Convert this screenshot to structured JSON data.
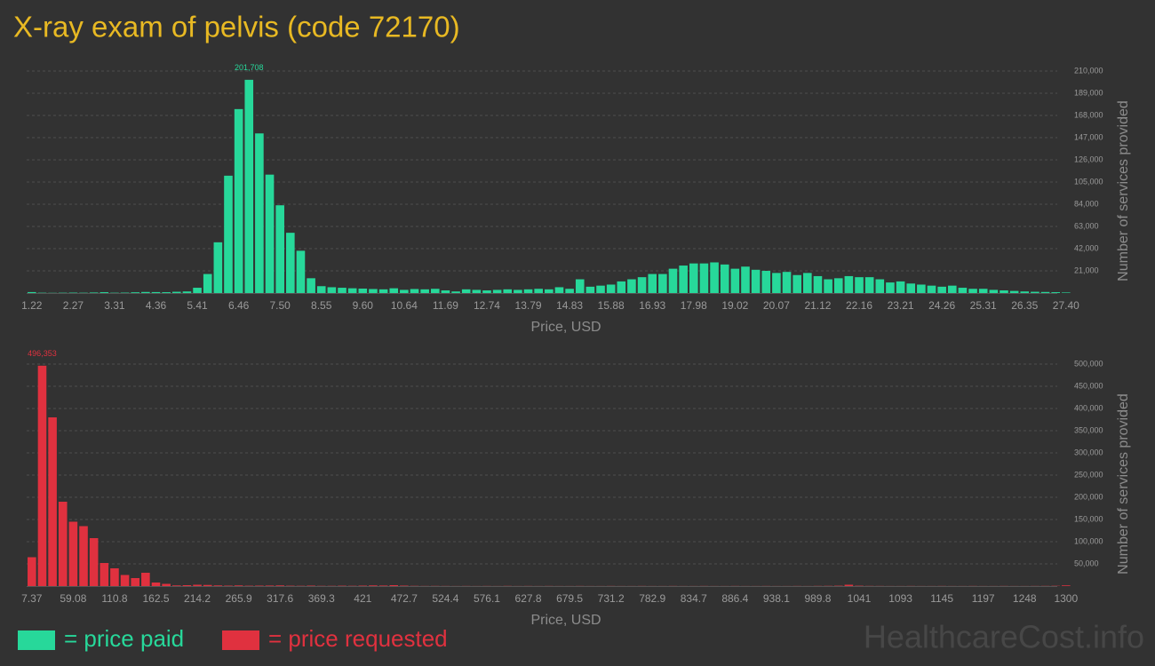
{
  "title": "X-ray exam of pelvis (code 72170)",
  "watermark": "HealthcareCost.info",
  "chart_data": [
    {
      "type": "bar",
      "name": "= price paid",
      "color": "#27d89a",
      "x_label": "Price, USD",
      "y_label": "Number of services provided",
      "grid": true,
      "ylim": [
        0,
        210000
      ],
      "yticks": [
        {
          "value": 21000,
          "label": "21,000"
        },
        {
          "value": 42000,
          "label": "42,000"
        },
        {
          "value": 63000,
          "label": "63,000"
        },
        {
          "value": 84000,
          "label": "84,000"
        },
        {
          "value": 105000,
          "label": "105,000"
        },
        {
          "value": 126000,
          "label": "126,000"
        },
        {
          "value": 147000,
          "label": "147,000"
        },
        {
          "value": 168000,
          "label": "168,000"
        },
        {
          "value": 189000,
          "label": "189,000"
        },
        {
          "value": 210000,
          "label": "210,000"
        }
      ],
      "categories": [
        "1.22",
        null,
        null,
        null,
        "2.27",
        null,
        null,
        null,
        "3.31",
        null,
        null,
        null,
        "4.36",
        null,
        null,
        null,
        "5.41",
        null,
        null,
        null,
        "6.46",
        null,
        null,
        null,
        "7.50",
        null,
        null,
        null,
        "8.55",
        null,
        null,
        null,
        "9.60",
        null,
        null,
        null,
        "10.64",
        null,
        null,
        null,
        "11.69",
        null,
        null,
        null,
        "12.74",
        null,
        null,
        null,
        "13.79",
        null,
        null,
        null,
        "14.83",
        null,
        null,
        null,
        "15.88",
        null,
        null,
        null,
        "16.93",
        null,
        null,
        null,
        "17.98",
        null,
        null,
        null,
        "19.02",
        null,
        null,
        null,
        "20.07",
        null,
        null,
        null,
        "21.12",
        null,
        null,
        null,
        "22.16",
        null,
        null,
        null,
        "23.21",
        null,
        null,
        null,
        "24.26",
        null,
        null,
        null,
        "25.31",
        null,
        null,
        null,
        "26.35",
        null,
        null,
        null,
        "27.40"
      ],
      "values": [
        900,
        300,
        200,
        300,
        400,
        300,
        500,
        800,
        300,
        400,
        700,
        1000,
        900,
        800,
        1200,
        1500,
        5000,
        18000,
        48000,
        111000,
        174000,
        201708,
        151000,
        112000,
        83000,
        57000,
        40000,
        14000,
        6500,
        5500,
        5000,
        4500,
        4200,
        3800,
        3500,
        4500,
        3000,
        3800,
        3500,
        4000,
        2500,
        1500,
        3500,
        3000,
        2500,
        3000,
        3500,
        3000,
        3500,
        4000,
        3500,
        5500,
        4000,
        13000,
        6000,
        7000,
        8000,
        11000,
        13000,
        15000,
        18000,
        18000,
        23000,
        26000,
        28000,
        28000,
        29000,
        27000,
        23000,
        25000,
        22000,
        21000,
        19000,
        20000,
        17000,
        19000,
        16000,
        13000,
        14000,
        16000,
        15000,
        15000,
        13000,
        10000,
        11000,
        9000,
        8000,
        7000,
        6000,
        7000,
        5000,
        4000,
        4000,
        3000,
        2500,
        2000,
        1500,
        1200,
        1000,
        800,
        500
      ],
      "value_labels": [
        null,
        null,
        null,
        null,
        null,
        null,
        null,
        null,
        null,
        null,
        null,
        null,
        null,
        null,
        null,
        null,
        null,
        null,
        null,
        null,
        null,
        "201,708",
        null,
        null,
        null,
        null,
        null,
        null,
        null,
        null,
        null,
        null,
        null,
        null,
        null,
        null,
        null,
        null,
        null,
        null,
        null,
        null,
        null,
        null,
        null,
        null,
        null,
        null,
        null,
        null,
        null,
        null,
        null,
        null,
        null,
        null,
        null,
        null,
        null,
        null,
        null,
        null,
        null,
        null,
        null,
        null,
        null,
        null,
        null,
        null,
        null,
        null,
        null,
        null,
        null,
        null,
        null,
        null,
        null,
        null,
        null,
        null,
        null,
        null,
        null,
        null,
        null,
        null,
        null,
        null,
        null,
        null,
        null,
        null,
        null,
        null,
        null,
        null,
        null,
        null,
        null
      ]
    },
    {
      "type": "bar",
      "name": "= price requested",
      "color": "#e0313f",
      "x_label": "Price, USD",
      "y_label": "Number of services provided",
      "grid": true,
      "ylim": [
        0,
        500000
      ],
      "yticks": [
        {
          "value": 50000,
          "label": "50,000"
        },
        {
          "value": 100000,
          "label": "100,000"
        },
        {
          "value": 150000,
          "label": "150,000"
        },
        {
          "value": 200000,
          "label": "200,000"
        },
        {
          "value": 250000,
          "label": "250,000"
        },
        {
          "value": 300000,
          "label": "300,000"
        },
        {
          "value": 350000,
          "label": "350,000"
        },
        {
          "value": 400000,
          "label": "400,000"
        },
        {
          "value": 450000,
          "label": "450,000"
        },
        {
          "value": 500000,
          "label": "500,000"
        }
      ],
      "categories": [
        "7.37",
        null,
        null,
        null,
        "59.08",
        null,
        null,
        null,
        "110.8",
        null,
        null,
        null,
        "162.5",
        null,
        null,
        null,
        "214.2",
        null,
        null,
        null,
        "265.9",
        null,
        null,
        null,
        "317.6",
        null,
        null,
        null,
        "369.3",
        null,
        null,
        null,
        "421",
        null,
        null,
        null,
        "472.7",
        null,
        null,
        null,
        "524.4",
        null,
        null,
        null,
        "576.1",
        null,
        null,
        null,
        "627.8",
        null,
        null,
        null,
        "679.5",
        null,
        null,
        null,
        "731.2",
        null,
        null,
        null,
        "782.9",
        null,
        null,
        null,
        "834.7",
        null,
        null,
        null,
        "886.4",
        null,
        null,
        null,
        "938.1",
        null,
        null,
        null,
        "989.8",
        null,
        null,
        null,
        "1041",
        null,
        null,
        null,
        "1093",
        null,
        null,
        null,
        "1145",
        null,
        null,
        null,
        "1197",
        null,
        null,
        null,
        "1248",
        null,
        null,
        null,
        "1300"
      ],
      "values": [
        65000,
        496353,
        380000,
        190000,
        145000,
        135000,
        108000,
        52000,
        40000,
        25000,
        18000,
        30000,
        8000,
        5000,
        1500,
        2000,
        3000,
        2500,
        1500,
        1000,
        1500,
        800,
        1000,
        1200,
        1500,
        800,
        600,
        1000,
        500,
        500,
        800,
        600,
        1000,
        1500,
        1200,
        2000,
        1000,
        500,
        300,
        400,
        300,
        200,
        300,
        200,
        300,
        200,
        400,
        200,
        300,
        200,
        300,
        200,
        200,
        300,
        200,
        200,
        300,
        200,
        200,
        300,
        200,
        200,
        300,
        200,
        200,
        300,
        200,
        200,
        300,
        200,
        200,
        300,
        200,
        200,
        300,
        200,
        400,
        500,
        800,
        3000,
        800,
        400,
        300,
        200,
        200,
        300,
        200,
        200,
        300,
        200,
        200,
        300,
        200,
        200,
        300,
        200,
        200,
        300,
        400,
        600,
        1500
      ],
      "value_labels": [
        null,
        "496,353",
        null,
        null,
        null,
        null,
        null,
        null,
        null,
        null,
        null,
        null,
        null,
        null,
        null,
        null,
        null,
        null,
        null,
        null,
        null,
        null,
        null,
        null,
        null,
        null,
        null,
        null,
        null,
        null,
        null,
        null,
        null,
        null,
        null,
        null,
        null,
        null,
        null,
        null,
        null,
        null,
        null,
        null,
        null,
        null,
        null,
        null,
        null,
        null,
        null,
        null,
        null,
        null,
        null,
        null,
        null,
        null,
        null,
        null,
        null,
        null,
        null,
        null,
        null,
        null,
        null,
        null,
        null,
        null,
        null,
        null,
        null,
        null,
        null,
        null,
        null,
        null,
        null,
        null,
        null,
        null,
        null,
        null,
        null,
        null,
        null,
        null,
        null,
        null,
        null,
        null,
        null,
        null,
        null,
        null,
        null,
        null,
        null,
        null,
        null
      ]
    }
  ]
}
